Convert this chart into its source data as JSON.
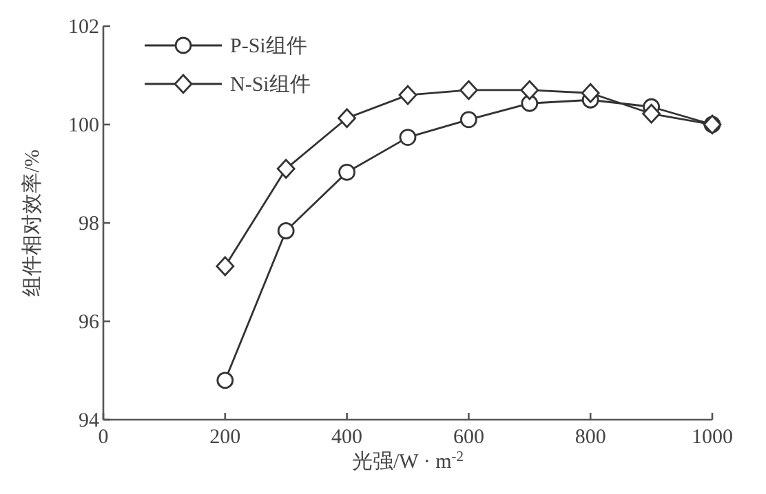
{
  "chart_data": {
    "type": "line",
    "xlabel": "光强/W · m$^{-2}$",
    "ylabel": "组件相对效率/%",
    "x": [
      200,
      300,
      400,
      500,
      600,
      700,
      800,
      900,
      1000
    ],
    "series": [
      {
        "name": "P-Si组件",
        "color": "#333333",
        "marker": "circle",
        "values": [
          94.8,
          97.84,
          99.03,
          99.74,
          100.1,
          100.43,
          100.5,
          100.36,
          100.0
        ]
      },
      {
        "name": "N-Si组件",
        "color": "#333333",
        "marker": "diamond",
        "values": [
          97.12,
          99.1,
          100.13,
          100.6,
          100.7,
          100.7,
          100.64,
          100.22,
          100.0
        ]
      }
    ],
    "xlim": [
      0,
      1000
    ],
    "ylim": [
      94,
      102
    ],
    "xticks": [
      0,
      200,
      400,
      600,
      800,
      1000
    ],
    "yticks": [
      94,
      96,
      98,
      100,
      102
    ],
    "legend": "top left",
    "grid": false,
    "line_style": "solid"
  }
}
